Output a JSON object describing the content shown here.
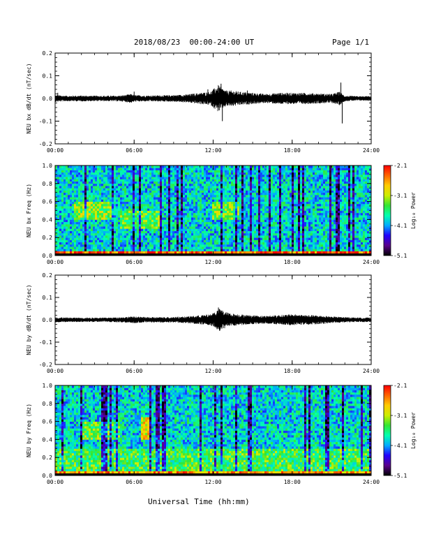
{
  "header": {
    "title": "2018/08/23  00:00-24:00 UT",
    "page": "Page 1/1"
  },
  "footer": {
    "xlabel": "Universal Time (hh:mm)"
  },
  "colors": {
    "trace": "#000000",
    "colorbar_stops": [
      "#000000",
      "#5a008c",
      "#2200ff",
      "#00aaff",
      "#00ffb0",
      "#33e633",
      "#ccee00",
      "#ffcc00",
      "#ff6600",
      "#ff0000"
    ]
  },
  "chart_data": [
    {
      "type": "line",
      "title": "",
      "xlabel": "",
      "ylabel": "NEU bx dB/dt (nT/sec)",
      "xlim": [
        0,
        24
      ],
      "ylim": [
        -0.2,
        0.2
      ],
      "x_ticks": [
        "00:00",
        "06:00",
        "12:00",
        "18:00",
        "24:00"
      ],
      "y_ticks": [
        "-0.2",
        "-0.1",
        "0.0",
        "0.1",
        "0.2"
      ],
      "grid": false,
      "envelope": {
        "hours": [
          0,
          1,
          2,
          3,
          4,
          5,
          5.8,
          6,
          7,
          8,
          9,
          10,
          11,
          11.8,
          12.2,
          12.4,
          12.7,
          13,
          13.5,
          14,
          15,
          16,
          17,
          18,
          19,
          20,
          21,
          21.6,
          22,
          23,
          24
        ],
        "amplitude": [
          0.015,
          0.012,
          0.013,
          0.012,
          0.012,
          0.013,
          0.02,
          0.015,
          0.013,
          0.014,
          0.015,
          0.018,
          0.025,
          0.03,
          0.05,
          0.06,
          0.045,
          0.035,
          0.035,
          0.03,
          0.025,
          0.02,
          0.025,
          0.025,
          0.025,
          0.022,
          0.02,
          0.03,
          0.012,
          0.01,
          0.01
        ]
      },
      "spikes": [
        {
          "hour": 0.2,
          "value": 0.025
        },
        {
          "hour": 6.0,
          "value": 0.03
        },
        {
          "hour": 11.6,
          "value": 0.04
        },
        {
          "hour": 12.6,
          "value": 0.065
        },
        {
          "hour": 12.7,
          "value": -0.1
        },
        {
          "hour": 14.6,
          "value": 0.035
        },
        {
          "hour": 21.7,
          "value": 0.07
        },
        {
          "hour": 21.8,
          "value": -0.11
        }
      ]
    },
    {
      "type": "heatmap",
      "title": "",
      "xlabel": "",
      "ylabel": "NEU bx Freq (Hz)",
      "xlim": [
        0,
        24
      ],
      "ylim": [
        0,
        1.0
      ],
      "x_ticks": [
        "00:00",
        "06:00",
        "12:00",
        "18:00",
        "24:00"
      ],
      "y_ticks": [
        "0.0",
        "0.2",
        "0.4",
        "0.6",
        "0.8",
        "1.0"
      ],
      "colorbar": {
        "label": "Log₁₀ Power",
        "range": [
          -5.1,
          -2.1
        ],
        "ticks": [
          "-2.1",
          "-3.1",
          "-4.1",
          "-5.1"
        ]
      },
      "features": [
        {
          "hour_range": [
            0,
            24
          ],
          "freq_range": [
            0,
            0.04
          ],
          "log_power": -2.4
        },
        {
          "hour_range": [
            11.5,
            15.5
          ],
          "freq_range": [
            0,
            0.03
          ],
          "log_power": -2.2
        },
        {
          "hour_range": [
            1.5,
            4.5
          ],
          "freq_range": [
            0.4,
            0.6
          ],
          "log_power": -3.3
        },
        {
          "hour_range": [
            5,
            8
          ],
          "freq_range": [
            0.3,
            0.5
          ],
          "log_power": -3.4
        },
        {
          "hour_range": [
            12,
            14
          ],
          "freq_range": [
            0.4,
            0.6
          ],
          "log_power": -3.3
        }
      ],
      "background_log_power": -3.9
    },
    {
      "type": "line",
      "title": "",
      "xlabel": "",
      "ylabel": "NEU by dB/dt (nT/sec)",
      "xlim": [
        0,
        24
      ],
      "ylim": [
        -0.2,
        0.2
      ],
      "x_ticks": [
        "00:00",
        "06:00",
        "12:00",
        "18:00",
        "24:00"
      ],
      "y_ticks": [
        "-0.2",
        "-0.1",
        "0.0",
        "0.1",
        "0.2"
      ],
      "grid": false,
      "envelope": {
        "hours": [
          0,
          1,
          2,
          3,
          4,
          5,
          6,
          7,
          8,
          9,
          10,
          11,
          11.8,
          12.2,
          12.5,
          12.8,
          13.2,
          14,
          15,
          16,
          17,
          18,
          19,
          20,
          21,
          22,
          23,
          24
        ],
        "amplitude": [
          0.012,
          0.01,
          0.01,
          0.01,
          0.01,
          0.012,
          0.015,
          0.012,
          0.012,
          0.013,
          0.015,
          0.02,
          0.025,
          0.04,
          0.05,
          0.04,
          0.03,
          0.025,
          0.02,
          0.018,
          0.022,
          0.025,
          0.022,
          0.02,
          0.015,
          0.012,
          0.01,
          0.01
        ]
      },
      "spikes": [
        {
          "hour": 12.4,
          "value": 0.055
        },
        {
          "hour": 12.5,
          "value": -0.05
        }
      ]
    },
    {
      "type": "heatmap",
      "title": "",
      "xlabel": "",
      "ylabel": "NEU by Freq (Hz)",
      "xlim": [
        0,
        24
      ],
      "ylim": [
        0,
        1.0
      ],
      "x_ticks": [
        "00:00",
        "06:00",
        "12:00",
        "18:00",
        "24:00"
      ],
      "y_ticks": [
        "0.0",
        "0.2",
        "0.4",
        "0.6",
        "0.8",
        "1.0"
      ],
      "colorbar": {
        "label": "Log₁₀ Power",
        "range": [
          -5.1,
          -2.1
        ],
        "ticks": [
          "-2.1",
          "-3.1",
          "-4.1",
          "-5.1"
        ]
      },
      "features": [
        {
          "hour_range": [
            0,
            24
          ],
          "freq_range": [
            0,
            0.05
          ],
          "log_power": -2.6
        },
        {
          "hour_range": [
            11.5,
            15.5
          ],
          "freq_range": [
            0,
            0.03
          ],
          "log_power": -2.2
        },
        {
          "hour_range": [
            6.5,
            7.2
          ],
          "freq_range": [
            0.4,
            0.65
          ],
          "log_power": -2.9
        },
        {
          "hour_range": [
            2,
            5
          ],
          "freq_range": [
            0.4,
            0.6
          ],
          "log_power": -3.4
        },
        {
          "hour_range": [
            0,
            24
          ],
          "freq_range": [
            0.05,
            0.3
          ],
          "log_power": -3.5
        }
      ],
      "background_log_power": -3.9
    }
  ]
}
